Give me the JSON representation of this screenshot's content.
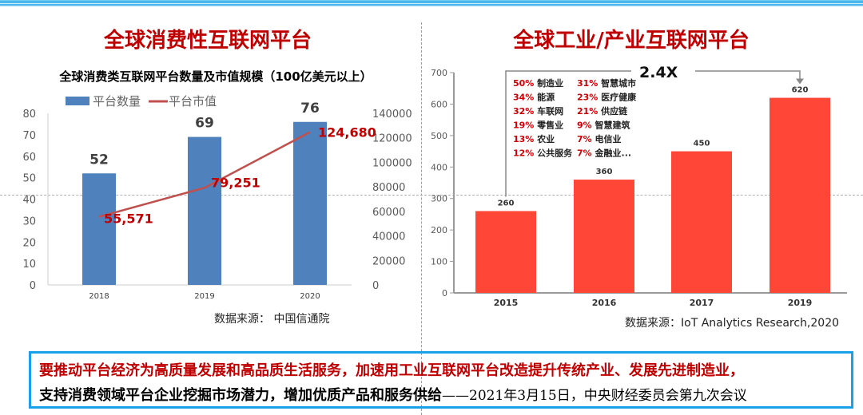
{
  "left": {
    "heading": "全球消费性互联网平台",
    "chart_data": {
      "type": "bar+line",
      "title": "全球消费类互联网平台数量及市值规模（100亿美元以上）",
      "categories": [
        "2018",
        "2019",
        "2020"
      ],
      "series": [
        {
          "name": "平台数量",
          "type": "bar",
          "axis": "left",
          "values": [
            52,
            69,
            76
          ],
          "color": "#4f81bd"
        },
        {
          "name": "平台市值",
          "type": "line",
          "axis": "right",
          "values": [
            55571,
            79251,
            124680
          ],
          "labels": [
            "55,571",
            "79,251",
            "124,680"
          ],
          "color": "#c0504d"
        }
      ],
      "ylim": [
        0,
        80
      ],
      "yticks": [
        0,
        10,
        20,
        30,
        40,
        50,
        60,
        70,
        80
      ],
      "y2lim": [
        0,
        140000
      ],
      "y2ticks": [
        0,
        20000,
        40000,
        60000,
        80000,
        100000,
        120000,
        140000
      ],
      "legend": "top",
      "grid": false
    },
    "source": "数据来源：  中国信通院"
  },
  "right": {
    "heading": "全球工业/产业互联网平台",
    "chart_data": {
      "type": "bar",
      "categories": [
        "2015",
        "2016",
        "2017",
        "2019"
      ],
      "values": [
        260,
        360,
        450,
        620
      ],
      "ylim": [
        0,
        700
      ],
      "yticks": [
        0,
        100,
        200,
        300,
        400,
        500,
        600,
        700
      ],
      "color": "#ff4637",
      "annotation": "2.4X",
      "grid": false,
      "breakdown": [
        [
          "50%",
          "制造业"
        ],
        [
          "31%",
          "智慧城市"
        ],
        [
          "34%",
          "能源"
        ],
        [
          "23%",
          "医疗健康"
        ],
        [
          "32%",
          "车联网"
        ],
        [
          "21%",
          "供应链"
        ],
        [
          "19%",
          "零售业"
        ],
        [
          "9%",
          "智慧建筑"
        ],
        [
          "13%",
          "农业"
        ],
        [
          "7%",
          "电信业"
        ],
        [
          "12%",
          "公共服务"
        ],
        [
          "7%",
          "金融业..."
        ]
      ]
    },
    "source": "数据来源：IoT Analytics Research,2020"
  },
  "quote": {
    "line1": "要推动平台经济为高质量发展和高品质生活服务，加速用工业互联网平台改造提升传统产业、发展先进制造业，",
    "line2": "支持消费领域平台企业挖掘市场潜力，增加优质产品和服务供给",
    "attribution": "——2021年3月15日，中央财经委员会第九次会议"
  }
}
